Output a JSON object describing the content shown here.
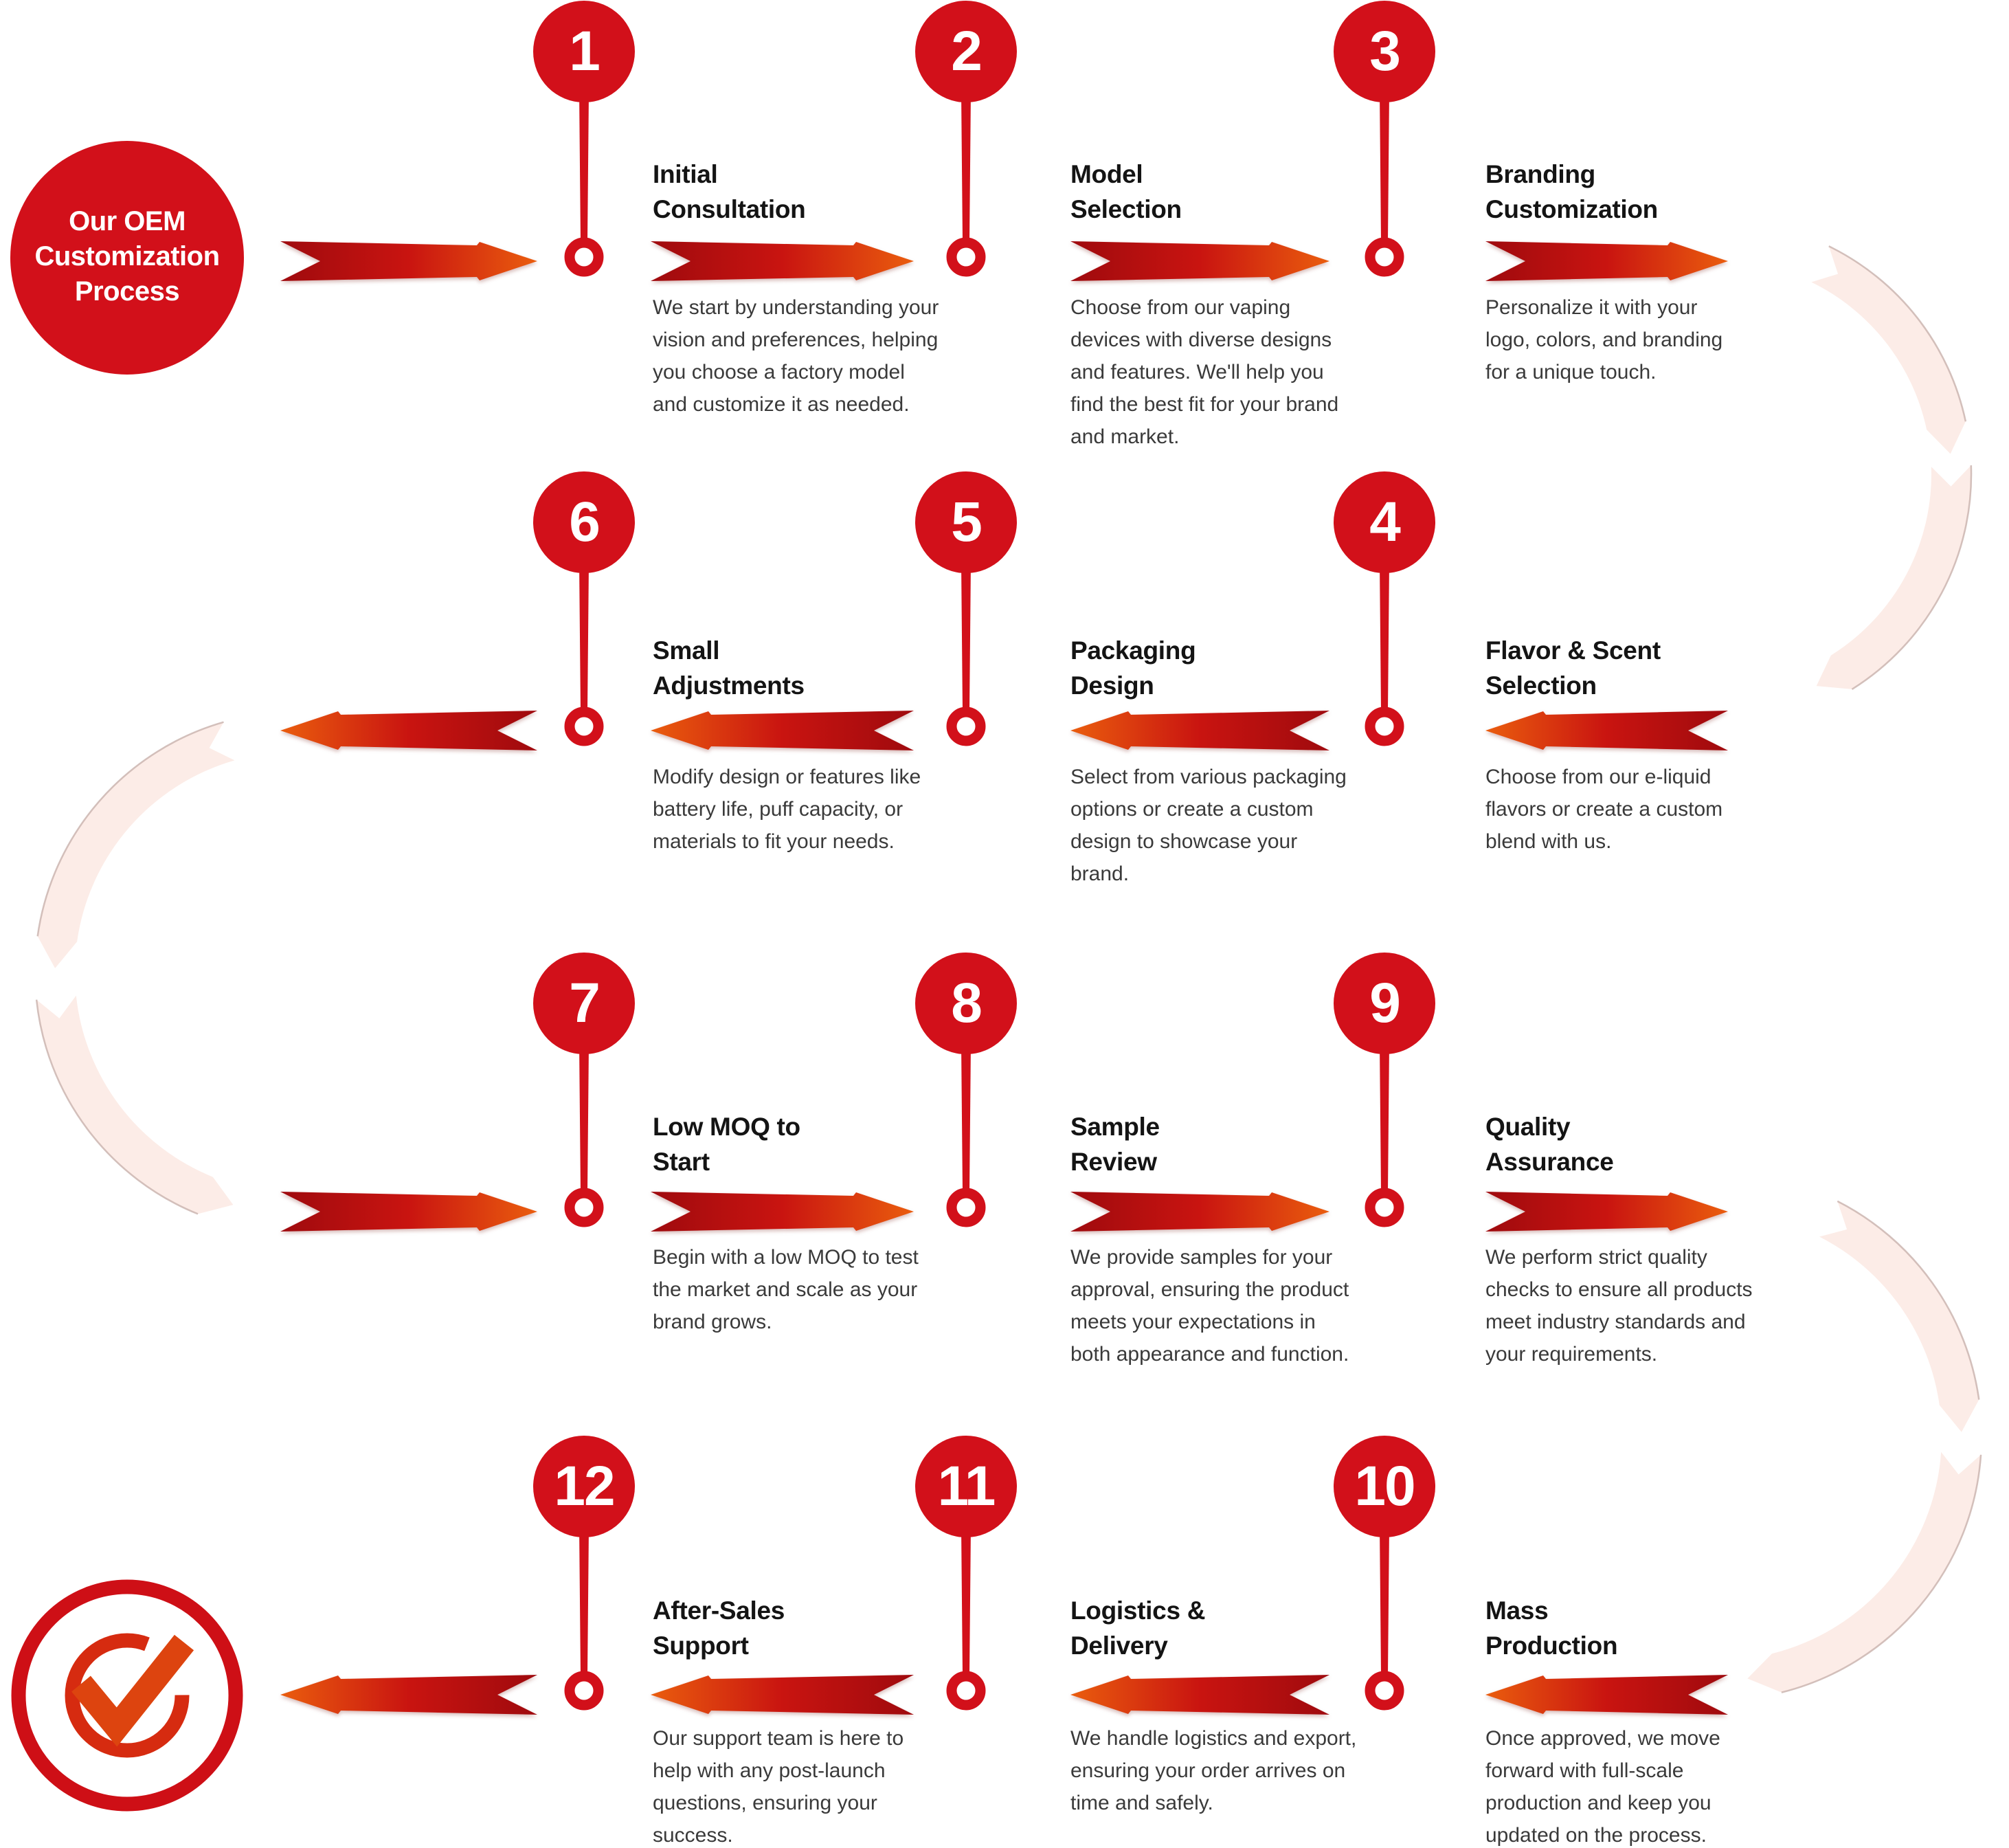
{
  "process": {
    "title_badge": {
      "line1": "Our OEM",
      "line2": "Customization",
      "line3": "Process"
    },
    "steps": [
      {
        "num": "1",
        "title1": "Initial",
        "title2": "Consultation",
        "desc": "We start by understanding your vision and preferences, helping you choose a factory model and customize it as needed."
      },
      {
        "num": "2",
        "title1": "Model",
        "title2": "Selection",
        "desc": "Choose from our vaping devices with diverse designs and features. We'll help you find the best fit for your brand and market."
      },
      {
        "num": "3",
        "title1": "Branding",
        "title2": "Customization",
        "desc": "Personalize it with your logo, colors, and branding for a unique touch."
      },
      {
        "num": "4",
        "title1": "Flavor & Scent",
        "title2": "Selection",
        "desc": "Choose from our e-liquid flavors or create a custom blend with us."
      },
      {
        "num": "5",
        "title1": "Packaging",
        "title2": "Design",
        "desc": "Select from various packaging options or create a custom design to showcase your brand."
      },
      {
        "num": "6",
        "title1": "Small",
        "title2": "Adjustments",
        "desc": "Modify design or features like battery life, puff capacity, or materials to fit your needs."
      },
      {
        "num": "7",
        "title1": "Low MOQ to",
        "title2": "Start",
        "desc": "Begin with a low MOQ to test the market and scale as your brand grows."
      },
      {
        "num": "8",
        "title1": "Sample",
        "title2": "Review",
        "desc": "We provide samples for your approval, ensuring the product meets your expectations in both appearance and function."
      },
      {
        "num": "9",
        "title1": "Quality",
        "title2": "Assurance",
        "desc": "We perform strict quality checks to ensure all products meet industry standards and your requirements."
      },
      {
        "num": "10",
        "title1": "Mass",
        "title2": "Production",
        "desc": "Once approved, we move forward with full-scale production and keep you updated on the process."
      },
      {
        "num": "11",
        "title1": "Logistics &",
        "title2": "Delivery",
        "desc": "We handle logistics and export, ensuring your order arrives on time and safely."
      },
      {
        "num": "12",
        "title1": "After-Sales",
        "title2": "Support",
        "desc": "Our support team is here to help with any post-launch questions, ensuring your success."
      }
    ],
    "end_icon": "check-circle-icon"
  },
  "colors": {
    "red": "#d2101a",
    "ribbon_dark": "#9f0a0e",
    "ribbon_mid": "#c91410",
    "ribbon_orange": "#ea5d0e",
    "arc_fill": "#fcece7",
    "arc_edge": "#c8b1ac",
    "title_text": "#141414",
    "body_text": "#3a3a3a",
    "check_orange": "#dd440f"
  }
}
